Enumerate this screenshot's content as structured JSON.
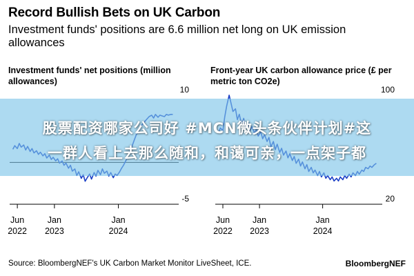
{
  "header": {
    "title": "Record Bullish Bets on UK Carbon",
    "subtitle": "Investment funds' positions are 6.6 million net long on UK emission allowances"
  },
  "watermark": {
    "line1": "股票配资哪家公司好 #MCN微头条伙伴计划#这",
    "line2": "一群人看上去那么随和，和蔼可亲，一点架子都"
  },
  "footer": {
    "source": "Source: BloombergNEF's UK Carbon Market Monitor LiveSheet, ICE.",
    "brand": "BloombergNEF"
  },
  "colors": {
    "line": "#1b3fc6",
    "zero_line": "#000000",
    "grid": "#d9d9d9",
    "banner": "#7ac4e8"
  },
  "chart_data": [
    {
      "type": "line",
      "title": "Investment funds' net positions (million allowances)",
      "y_axis_side": "right",
      "ylim": [
        -5,
        10
      ],
      "yticks": [
        -5,
        10
      ],
      "x_ticks": [
        {
          "x": 2022.42,
          "line1": "Jun",
          "line2": "2022"
        },
        {
          "x": 2023.0,
          "line1": "Jan",
          "line2": "2023"
        },
        {
          "x": 2024.0,
          "line1": "Jan",
          "line2": "2024"
        }
      ],
      "xlim": [
        2022.3,
        2024.9
      ],
      "series": [
        {
          "x": [
            2022.35,
            2022.38,
            2022.42,
            2022.45,
            2022.48,
            2022.52,
            2022.55,
            2022.58,
            2022.62,
            2022.65,
            2022.68,
            2022.72,
            2022.75,
            2022.78,
            2022.82,
            2022.85,
            2022.88,
            2022.92,
            2022.95,
            2022.98,
            2023.02,
            2023.05,
            2023.08,
            2023.12,
            2023.15,
            2023.18,
            2023.22,
            2023.25,
            2023.28,
            2023.32,
            2023.35,
            2023.38,
            2023.42,
            2023.45,
            2023.48,
            2023.52,
            2023.55,
            2023.58,
            2023.62,
            2023.65,
            2023.68,
            2023.72,
            2023.75,
            2023.78,
            2023.82,
            2023.85,
            2023.88,
            2023.92,
            2023.95,
            2023.98,
            2024.02,
            2024.05,
            2024.08,
            2024.12,
            2024.15,
            2024.18,
            2024.22,
            2024.25,
            2024.28,
            2024.32,
            2024.35,
            2024.38,
            2024.42,
            2024.45,
            2024.48,
            2024.52,
            2024.55,
            2024.58,
            2024.62,
            2024.65,
            2024.68,
            2024.72,
            2024.75,
            2024.78,
            2024.82,
            2024.85
          ],
          "y": [
            1.8,
            2.3,
            1.9,
            2.6,
            2.1,
            2.4,
            1.7,
            2.2,
            1.5,
            1.9,
            1.3,
            1.6,
            1.1,
            1.4,
            0.9,
            1.2,
            0.6,
            1.0,
            0.4,
            0.7,
            0.2,
            0.5,
            -0.1,
            0.2,
            -0.4,
            -0.1,
            -0.8,
            -0.4,
            -1.2,
            -0.9,
            -1.8,
            -1.3,
            -2.2,
            -1.7,
            -2.6,
            -2.0,
            -1.6,
            -2.3,
            -1.4,
            -1.9,
            -1.1,
            -1.7,
            -0.9,
            -1.5,
            -1.2,
            -1.9,
            -1.4,
            -2.1,
            -1.6,
            -1.8,
            -1.3,
            -0.8,
            -0.4,
            0.3,
            0.9,
            1.6,
            2.4,
            3.1,
            3.8,
            4.4,
            4.9,
            5.3,
            5.7,
            6.0,
            6.3,
            6.5,
            6.1,
            6.6,
            6.2,
            6.5,
            6.4,
            6.3,
            6.6,
            6.5,
            6.6,
            6.6
          ]
        }
      ]
    },
    {
      "type": "line",
      "title": "Front-year UK carbon allowance price (£ per metric ton CO2e)",
      "y_axis_side": "right",
      "ylim": [
        20,
        100
      ],
      "yticks": [
        20,
        100
      ],
      "x_ticks": [
        {
          "x": 2022.42,
          "line1": "Jun",
          "line2": "2022"
        },
        {
          "x": 2023.0,
          "line1": "Jan",
          "line2": "2023"
        },
        {
          "x": 2024.0,
          "line1": "Jan",
          "line2": "2024"
        }
      ],
      "xlim": [
        2022.3,
        2024.9
      ],
      "series": [
        {
          "x": [
            2022.35,
            2022.38,
            2022.42,
            2022.45,
            2022.48,
            2022.52,
            2022.55,
            2022.58,
            2022.62,
            2022.65,
            2022.68,
            2022.72,
            2022.75,
            2022.78,
            2022.82,
            2022.85,
            2022.88,
            2022.92,
            2022.95,
            2022.98,
            2023.02,
            2023.05,
            2023.08,
            2023.12,
            2023.15,
            2023.18,
            2023.22,
            2023.25,
            2023.28,
            2023.32,
            2023.35,
            2023.38,
            2023.42,
            2023.45,
            2023.48,
            2023.52,
            2023.55,
            2023.58,
            2023.62,
            2023.65,
            2023.68,
            2023.72,
            2023.75,
            2023.78,
            2023.82,
            2023.85,
            2023.88,
            2023.92,
            2023.95,
            2023.98,
            2024.02,
            2024.05,
            2024.08,
            2024.12,
            2024.15,
            2024.18,
            2024.22,
            2024.25,
            2024.28,
            2024.32,
            2024.35,
            2024.38,
            2024.42,
            2024.45,
            2024.48,
            2024.52,
            2024.55,
            2024.58,
            2024.62,
            2024.65,
            2024.68,
            2024.72,
            2024.75,
            2024.78,
            2024.82,
            2024.85
          ],
          "y": [
            68,
            72,
            70,
            80,
            88,
            96,
            90,
            84,
            86,
            78,
            82,
            74,
            79,
            72,
            76,
            70,
            73,
            68,
            71,
            66,
            69,
            64,
            67,
            62,
            65,
            58,
            62,
            56,
            60,
            54,
            57,
            52,
            55,
            50,
            53,
            48,
            51,
            46,
            49,
            44,
            47,
            42,
            45,
            40,
            43,
            39,
            41,
            37,
            40,
            36,
            39,
            35,
            37,
            34,
            36,
            33,
            35,
            33,
            36,
            34,
            37,
            35,
            38,
            36,
            39,
            37,
            40,
            38,
            41,
            40,
            43,
            42,
            44,
            43,
            45,
            46
          ]
        }
      ]
    }
  ]
}
